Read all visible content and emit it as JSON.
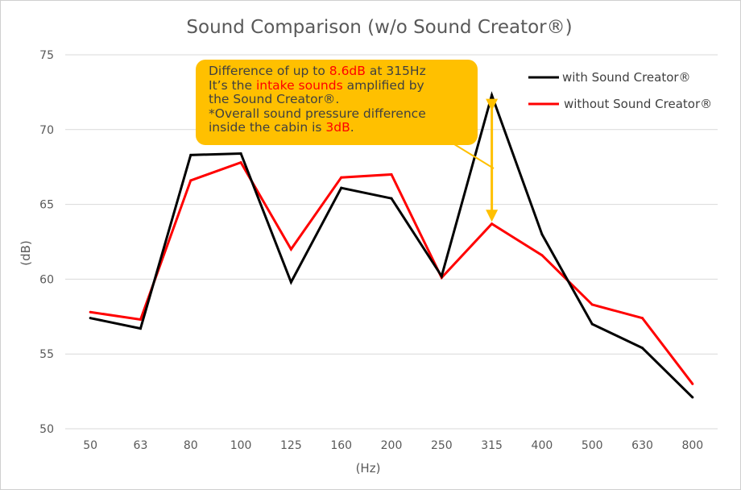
{
  "chart_data": {
    "type": "line",
    "title": "Sound Comparison (w/o Sound Creator®)",
    "xlabel": "(Hz)",
    "ylabel": "(dB)",
    "categories": [
      "50",
      "63",
      "80",
      "100",
      "125",
      "160",
      "200",
      "250",
      "315",
      "400",
      "500",
      "630",
      "800"
    ],
    "ylim": [
      50,
      75
    ],
    "yticks": [
      "50",
      "55",
      "60",
      "65",
      "70",
      "75"
    ],
    "grid": true,
    "legend_position": "top-right",
    "series": [
      {
        "name": "with Sound Creator®",
        "color": "#000000",
        "values": [
          57.4,
          56.7,
          68.3,
          68.4,
          59.8,
          66.1,
          65.4,
          60.2,
          72.3,
          63.0,
          57.0,
          55.4,
          52.1
        ]
      },
      {
        "name": "without Sound Creator®",
        "color": "#ff0000",
        "values": [
          57.8,
          57.3,
          66.6,
          67.8,
          62.0,
          66.8,
          67.0,
          60.1,
          63.7,
          61.6,
          58.3,
          57.4,
          53.0
        ]
      }
    ],
    "annotation": {
      "box_color": "#ffc000",
      "arrow_color": "#ffc000",
      "arrow_at": "315",
      "arrow_from": 72.3,
      "arrow_to": 63.7,
      "line1": {
        "a": "Difference of up to ",
        "b": "8.6dB",
        "c": " at 315Hz"
      },
      "line2": {
        "a": "It’s the ",
        "b": "intake sounds",
        "c": " amplified by"
      },
      "line3": "the Sound Creator®.",
      "line4": "*Overall sound pressure difference",
      "line5": {
        "a": "inside the cabin is ",
        "b": "3dB",
        "c": "."
      }
    }
  }
}
